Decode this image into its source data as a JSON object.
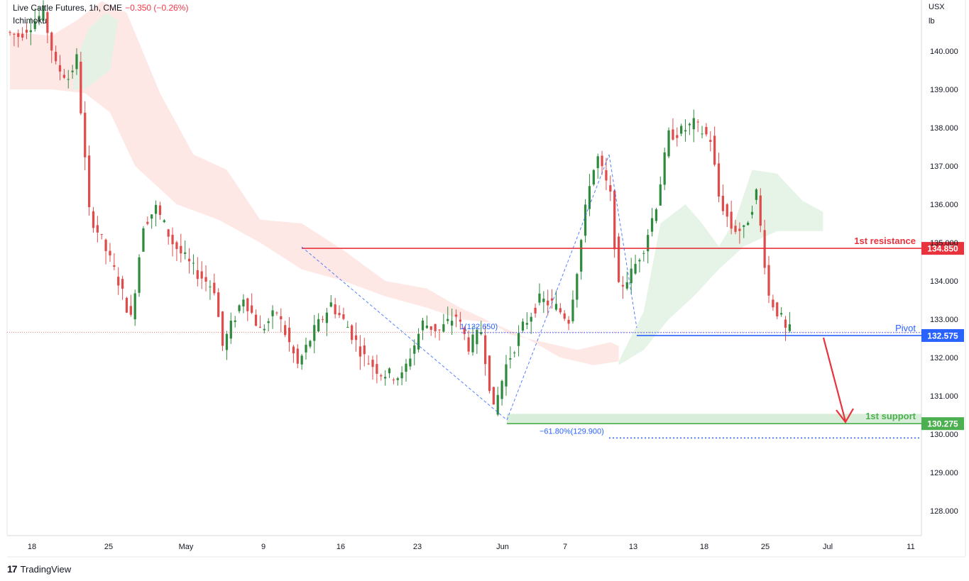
{
  "header": {
    "title": "Live Cattle Futures, 1h, CME",
    "change": "−0.350 (−0.26%)",
    "indicator": "Ichimoku"
  },
  "axis": {
    "unit_top": "USX",
    "unit_bottom": "lb"
  },
  "footer": {
    "brand": "TradingView"
  },
  "colors": {
    "up": "#2e8b3e",
    "down": "#e04b4b",
    "resistance": "#e8323c",
    "pivot": "#2962ff",
    "support": "#4caf50",
    "fib": "#2962ff",
    "cloud_green": "#e3f2e4",
    "cloud_red": "#fde4e1"
  },
  "chart_data": {
    "type": "candlestick",
    "symbol": "Live Cattle Futures",
    "timeframe": "1h",
    "exchange": "CME",
    "ylim": [
      127.5,
      141.8
    ],
    "y_ticks": [
      "128.000",
      "129.000",
      "130.000",
      "131.000",
      "132.000",
      "133.000",
      "134.000",
      "135.000",
      "136.000",
      "137.000",
      "138.000",
      "139.000",
      "140.000"
    ],
    "x_ticks": [
      "18",
      "25",
      "May",
      "9",
      "16",
      "23",
      "Jun",
      "7",
      "13",
      "18",
      "25",
      "Jul",
      "11"
    ],
    "levels": [
      {
        "name": "1st resistance",
        "value": 134.85,
        "label": "134.850"
      },
      {
        "name": "Pivot",
        "value": 132.575,
        "label": "132.575"
      },
      {
        "name": "1st support",
        "value": 130.275,
        "label": "130.275"
      }
    ],
    "fib_labels": [
      "1(132.650)",
      "−61.80%(129.900)"
    ],
    "fib_values": [
      132.65,
      129.9
    ],
    "price_path": [
      [
        0,
        140.5
      ],
      [
        3,
        140.4
      ],
      [
        6,
        140.7
      ],
      [
        9,
        141.0
      ],
      [
        12,
        139.6
      ],
      [
        15,
        139.3
      ],
      [
        17,
        139.8
      ],
      [
        20,
        135.8
      ],
      [
        24,
        134.8
      ],
      [
        27,
        134.0
      ],
      [
        30,
        133.0
      ],
      [
        33,
        135.5
      ],
      [
        36,
        135.9
      ],
      [
        40,
        135.0
      ],
      [
        45,
        134.3
      ],
      [
        50,
        133.8
      ],
      [
        52,
        132.3
      ],
      [
        57,
        133.6
      ],
      [
        61,
        132.7
      ],
      [
        65,
        133.2
      ],
      [
        70,
        131.8
      ],
      [
        74,
        132.7
      ],
      [
        78,
        133.4
      ],
      [
        82,
        132.8
      ],
      [
        86,
        132.0
      ],
      [
        90,
        131.6
      ],
      [
        95,
        131.5
      ],
      [
        100,
        132.9
      ],
      [
        104,
        132.7
      ],
      [
        108,
        133.1
      ],
      [
        111,
        132.3
      ],
      [
        114,
        132.7
      ],
      [
        117,
        130.6
      ],
      [
        120,
        131.8
      ],
      [
        124,
        132.8
      ],
      [
        128,
        133.5
      ],
      [
        131,
        133.4
      ],
      [
        135,
        133.0
      ],
      [
        137,
        134.3
      ],
      [
        140,
        136.6
      ],
      [
        142,
        137.2
      ],
      [
        145,
        136.2
      ],
      [
        147,
        133.8
      ],
      [
        150,
        134.2
      ],
      [
        153,
        134.9
      ],
      [
        156,
        136.0
      ],
      [
        159,
        137.8
      ],
      [
        162,
        137.9
      ],
      [
        165,
        138.1
      ],
      [
        169,
        137.7
      ],
      [
        171,
        136.2
      ],
      [
        174,
        135.4
      ],
      [
        177,
        135.3
      ],
      [
        180,
        136.3
      ],
      [
        183,
        133.6
      ],
      [
        186,
        133.0
      ],
      [
        187,
        132.7
      ]
    ]
  }
}
